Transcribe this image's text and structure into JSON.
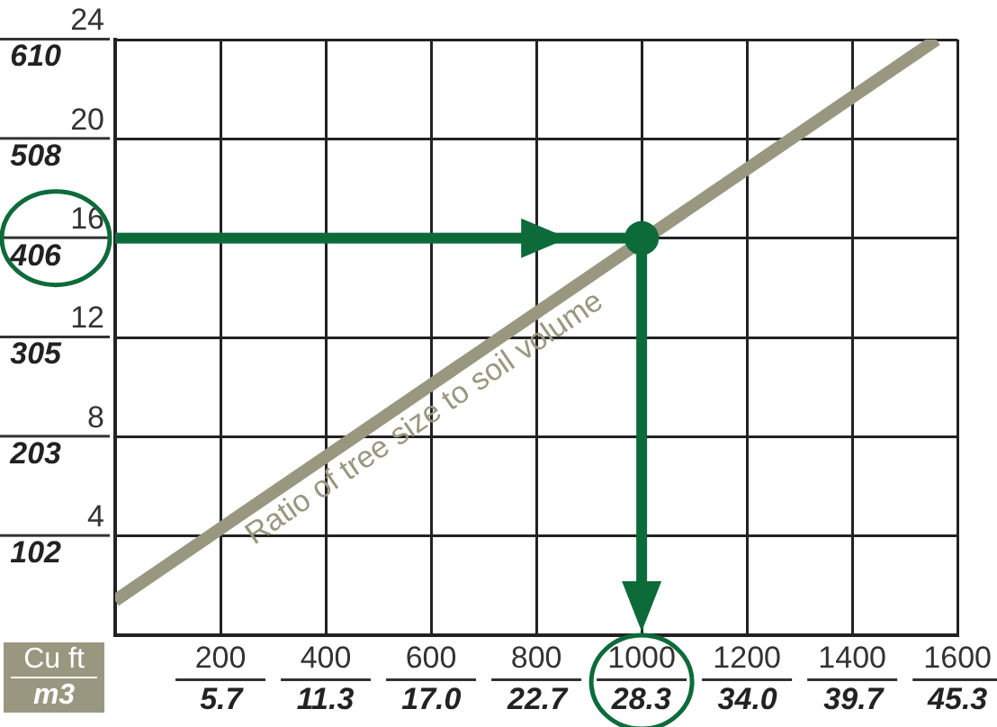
{
  "chart_data": {
    "type": "line",
    "xlabel": "Cu ft",
    "x2label": "m3",
    "xlim": [
      0,
      1600
    ],
    "xticks": [
      200,
      400,
      600,
      800,
      1000,
      1200,
      1400,
      1600
    ],
    "x2lim": [
      0,
      45.3
    ],
    "x2ticks": [
      5.7,
      11.3,
      {
        "value": 17,
        "label": "17.0"
      },
      22.7,
      28.3,
      {
        "value": 34,
        "label": "34.0"
      },
      39.7,
      45.3
    ],
    "ylim": [
      0,
      24
    ],
    "yticks": [
      4,
      8,
      12,
      16,
      20,
      24
    ],
    "y2lim": [
      0,
      610
    ],
    "y2ticks": [
      102,
      203,
      305,
      406,
      508,
      610
    ],
    "grid": true,
    "legend": false,
    "series": [
      {
        "type": "line",
        "color": "#99977f",
        "x": [
          0,
          1560
        ],
        "values": [
          1.4,
          24
        ]
      },
      {
        "type": "scatter",
        "color": "#0d6b3a",
        "marker": "circle",
        "x": [
          1000
        ],
        "values": [
          16
        ]
      }
    ],
    "annotations": [
      {
        "text": "Ratio of tree size to soil volume",
        "x": 560,
        "y": 9.6
      }
    ]
  }
}
